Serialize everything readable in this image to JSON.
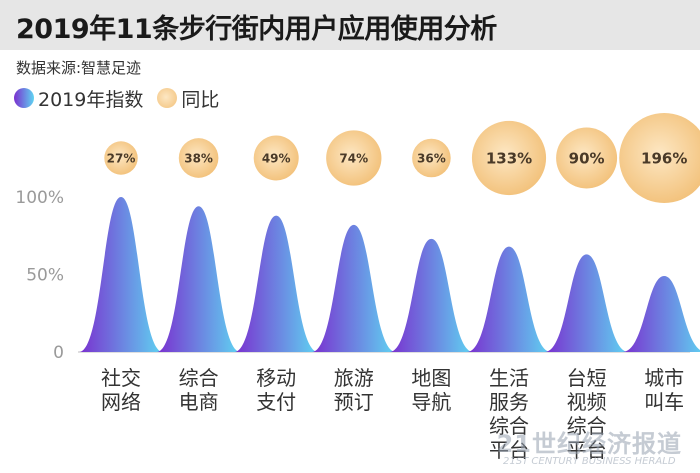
{
  "header": {
    "title": "2019年11条步行街内用户应用使用分析",
    "source": "数据来源:智慧足迹"
  },
  "legend": {
    "index_label": "2019年指数",
    "yoy_label": "同比"
  },
  "colors": {
    "peak_left": "#7a2fcf",
    "peak_right": "#5fd5f2",
    "bubble_light": "#fde7c3",
    "bubble_dark": "#f2c078",
    "title_bar": "#e6e6e6"
  },
  "chart_data": {
    "type": "area",
    "title": "2019年11条步行街内用户应用使用分析",
    "categories": [
      [
        "社交",
        "网络"
      ],
      [
        "综合",
        "电商"
      ],
      [
        "移动",
        "支付"
      ],
      [
        "旅游",
        "预订"
      ],
      [
        "地图",
        "导航"
      ],
      [
        "生活",
        "服务",
        "综合",
        "平台"
      ],
      [
        "台短",
        "视频",
        "综合",
        "平台"
      ],
      [
        "城市",
        "叫车"
      ]
    ],
    "series": [
      {
        "name": "2019年指数",
        "values": [
          100,
          94,
          88,
          82,
          73,
          68,
          63,
          49
        ]
      },
      {
        "name": "同比",
        "values": [
          27,
          38,
          49,
          74,
          36,
          133,
          90,
          196
        ],
        "labels": [
          "27%",
          "38%",
          "49%",
          "74%",
          "36%",
          "133%",
          "90%",
          "196%"
        ]
      }
    ],
    "y_ticks": [
      "0",
      "50%",
      "100%"
    ],
    "ylim": [
      0,
      100
    ]
  },
  "watermark": {
    "main": "21世纪经济报道",
    "sub": "21ST CENTURY BUSINESS HERALD"
  }
}
